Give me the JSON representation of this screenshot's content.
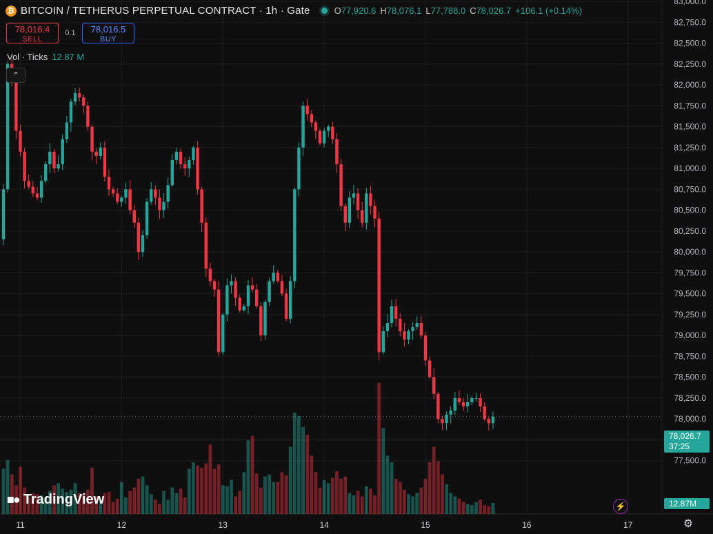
{
  "header": {
    "coin_symbol": "₿",
    "title": "BITCOIN / TETHERUS PERPETUAL CONTRACT · 1h · Gate",
    "ohlc": [
      {
        "k": "O",
        "v": "77,920.6"
      },
      {
        "k": "H",
        "v": "78,076.1"
      },
      {
        "k": "L",
        "v": "77,788.0"
      },
      {
        "k": "C",
        "v": "78,026.7"
      }
    ],
    "change": "+106.1 (+0.14%)"
  },
  "trade": {
    "sell_price": "78,016.4",
    "sell_label": "SELL",
    "spread": "0.1",
    "buy_price": "78,016.5",
    "buy_label": "BUY"
  },
  "volume_legend": {
    "label": "Vol · Ticks",
    "value": "12.87 M"
  },
  "last_price": {
    "value": "78,026.7",
    "countdown": "37:25",
    "volume": "12.87M"
  },
  "logo_text": "TradingView",
  "colors": {
    "up": "#26a69a",
    "down": "#f23645",
    "background": "#0f0f0f",
    "grid": "#1e1e1e"
  },
  "icons": {
    "coin": "bitcoin-icon",
    "collapse": "chevron-up-icon",
    "bolt": "lightning-icon",
    "settings": "gear-icon"
  },
  "chart_data": {
    "type": "candlestick",
    "timeframe": "1h",
    "ylim": [
      77250,
      83000
    ],
    "y_ticks": [
      77500,
      77750,
      78000,
      78250,
      78500,
      78750,
      79000,
      79250,
      79500,
      79750,
      80000,
      80250,
      80500,
      80750,
      81000,
      81250,
      81500,
      81750,
      82000,
      82250,
      82500,
      82750,
      83000
    ],
    "y_tick_labels": [
      "77,500.0",
      "77,750.0",
      "78,000.0",
      "78,250.0",
      "78,500.0",
      "78,750.0",
      "79,000.0",
      "79,250.0",
      "79,500.0",
      "79,750.0",
      "80,000.0",
      "80,250.0",
      "80,500.0",
      "80,750.0",
      "81,000.0",
      "81,250.0",
      "81,500.0",
      "81,750.0",
      "82,000.0",
      "82,250.0",
      "82,500.0",
      "82,750.0",
      "83,000.0"
    ],
    "x_labels": [
      {
        "label": "11",
        "index": 4
      },
      {
        "label": "12",
        "index": 28
      },
      {
        "label": "13",
        "index": 52
      },
      {
        "label": "14",
        "index": 76
      },
      {
        "label": "15",
        "index": 100
      },
      {
        "label": "16",
        "index": 124
      },
      {
        "label": "17",
        "index": 148
      }
    ],
    "closes": [
      80750,
      82250,
      82050,
      81450,
      81200,
      80850,
      80780,
      80700,
      80650,
      80850,
      81050,
      81200,
      81000,
      81050,
      81350,
      81550,
      81800,
      81900,
      81850,
      81750,
      81500,
      81200,
      81150,
      81250,
      80900,
      80750,
      80700,
      80600,
      80650,
      80750,
      80500,
      80350,
      80000,
      80200,
      80600,
      80750,
      80650,
      80500,
      80600,
      80800,
      81100,
      81200,
      81050,
      81000,
      81100,
      81250,
      80750,
      80350,
      79800,
      79650,
      79550,
      78800,
      79250,
      79600,
      79650,
      79450,
      79300,
      79350,
      79600,
      79550,
      79350,
      79000,
      79400,
      79650,
      79750,
      79650,
      79500,
      79200,
      79650,
      80750,
      81250,
      81750,
      81650,
      81550,
      81450,
      81300,
      81450,
      81500,
      81350,
      81050,
      80550,
      80350,
      80650,
      80700,
      80500,
      80350,
      80700,
      80550,
      80400,
      78800,
      79050,
      79150,
      79350,
      79200,
      79050,
      78950,
      79050,
      79100,
      79150,
      79000,
      78700,
      78500,
      78300,
      78000,
      77950,
      78050,
      78100,
      78250,
      78200,
      78150,
      78200,
      78250,
      78250,
      78150,
      78000,
      77950,
      78027
    ],
    "volumes": [
      4.1,
      4.9,
      3.6,
      2.6,
      4.3,
      2.4,
      1.5,
      1.9,
      1.8,
      1.7,
      1.5,
      2.1,
      2.6,
      2.8,
      2.3,
      2.0,
      2.2,
      2.8,
      1.9,
      1.8,
      2.2,
      4.2,
      1.6,
      1.1,
      1.9,
      2.0,
      1.1,
      1.4,
      2.9,
      1.5,
      2.1,
      2.4,
      3.2,
      3.4,
      2.6,
      1.8,
      1.3,
      0.9,
      2.1,
      1.3,
      2.4,
      1.9,
      2.3,
      1.5,
      4.1,
      4.7,
      4.4,
      4.2,
      4.6,
      6.3,
      4.1,
      4.5,
      2.6,
      2.5,
      3.1,
      1.6,
      2.1,
      3.8,
      6.7,
      7.1,
      3.7,
      2.4,
      3.4,
      3.6,
      2.9,
      2.9,
      3.8,
      3.5,
      6.1,
      9.2,
      8.9,
      7.9,
      7.2,
      5.3,
      3.8,
      2.4,
      3.1,
      2.8,
      3.3,
      3.9,
      3.2,
      3.4,
      1.9,
      1.7,
      2.1,
      1.6,
      2.5,
      2.3,
      1.7,
      11.9,
      7.8,
      5.3,
      4.7,
      3.2,
      2.9,
      2.2,
      1.8,
      1.6,
      1.9,
      2.4,
      3.2,
      4.7,
      6.1,
      4.8,
      3.6,
      2.7,
      1.9,
      1.6,
      1.4,
      1.1,
      0.9,
      0.8,
      1.1,
      1.3,
      0.8,
      0.7,
      1.0
    ]
  }
}
